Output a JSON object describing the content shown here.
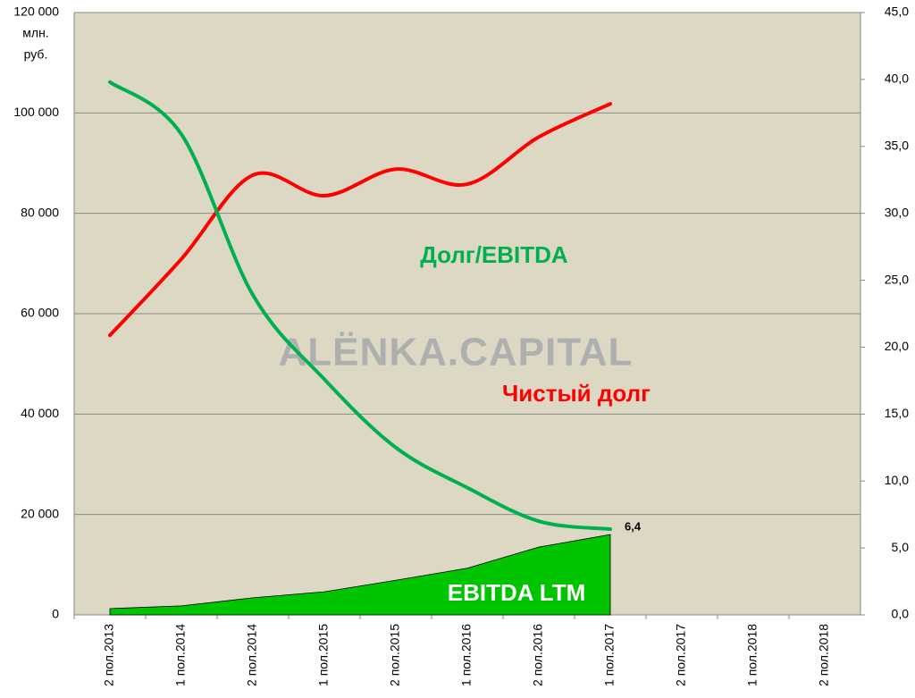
{
  "chart_data": {
    "type": "line",
    "watermark": "ALЁNKA.CAPITAL",
    "y_unit": [
      "млн.",
      "руб."
    ],
    "categories": [
      "2 пол.2013",
      "1 пол.2014",
      "2 пол.2014",
      "1 пол.2015",
      "2 пол.2015",
      "1 пол.2016",
      "2 пол.2016",
      "1 пол.2017",
      "2 пол.2017",
      "1 пол.2018",
      "2 пол.2018"
    ],
    "series": [
      {
        "name": "EBITDA LTM",
        "type": "area",
        "color": "#00c400",
        "values": [
          1250,
          1800,
          3400,
          4600,
          6900,
          9300,
          13500,
          16000,
          null,
          null,
          null
        ]
      },
      {
        "name": "Чистый долг",
        "type": "line",
        "color": "#ff0000",
        "values": [
          55700,
          70900,
          87600,
          83500,
          88800,
          85800,
          95200,
          101800,
          null,
          null,
          null
        ]
      },
      {
        "name": "Долг/EBITDA",
        "type": "line",
        "color": "#00b050",
        "axis": "y2",
        "values": [
          39.8,
          35.9,
          23.9,
          17.6,
          12.5,
          9.5,
          7.0,
          6.4,
          null,
          null,
          null
        ],
        "value_labels": [
          null,
          null,
          null,
          null,
          null,
          null,
          null,
          "6,4",
          null,
          null,
          null
        ]
      }
    ],
    "ylim": [
      0,
      120000
    ],
    "yticks": [
      0,
      {
        "value": 20000,
        "label": "20 000"
      },
      {
        "value": 40000,
        "label": "40 000"
      },
      {
        "value": 60000,
        "label": "60 000"
      },
      {
        "value": 80000,
        "label": "80 000"
      },
      {
        "value": 100000,
        "label": "100 000"
      },
      {
        "value": 120000,
        "label": "120 000"
      }
    ],
    "y2lim": [
      0,
      45
    ],
    "y2ticks": [
      {
        "value": 0,
        "label": "0,0"
      },
      {
        "value": 5,
        "label": "5,0"
      },
      {
        "value": 10,
        "label": "10,0"
      },
      {
        "value": 15,
        "label": "15,0"
      },
      {
        "value": 20,
        "label": "20,0"
      },
      {
        "value": 25,
        "label": "25,0"
      },
      {
        "value": 30,
        "label": "30,0"
      },
      {
        "value": 35,
        "label": "35,0"
      },
      {
        "value": 40,
        "label": "40,0"
      },
      {
        "value": 45,
        "label": "45,0"
      }
    ],
    "grid": true
  }
}
